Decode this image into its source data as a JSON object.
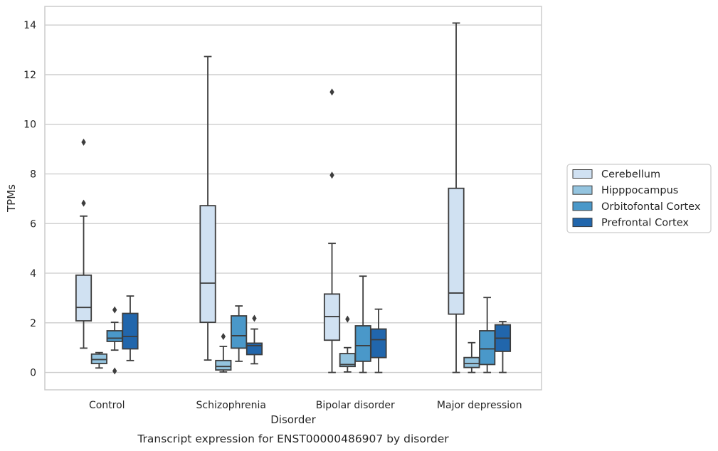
{
  "chart_data": {
    "type": "box",
    "xlabel": "Disorder",
    "ylabel": "TPMs",
    "caption": "Transcript expression for ENST00000486907 by disorder",
    "ylim": [
      -0.7,
      14.75
    ],
    "yticks": [
      0,
      2,
      4,
      6,
      8,
      10,
      12,
      14
    ],
    "grid": true,
    "legend_position": "right",
    "categories": [
      "Control",
      "Schizophrenia",
      "Bipolar disorder",
      "Major depression"
    ],
    "series": [
      {
        "name": "Cerebellum",
        "color": "#d0e1f2",
        "boxes": [
          {
            "whislo": 0.98,
            "q1": 2.08,
            "med": 2.62,
            "q3": 3.92,
            "whishi": 6.3,
            "fliers": [
              6.82,
              9.28
            ]
          },
          {
            "whislo": 0.5,
            "q1": 2.02,
            "med": 3.6,
            "q3": 6.72,
            "whishi": 12.73,
            "fliers": []
          },
          {
            "whislo": 0.0,
            "q1": 1.3,
            "med": 2.25,
            "q3": 3.16,
            "whishi": 5.2,
            "fliers": [
              7.95,
              11.3
            ]
          },
          {
            "whislo": 0.0,
            "q1": 2.35,
            "med": 3.2,
            "q3": 7.42,
            "whishi": 14.08,
            "fliers": []
          }
        ]
      },
      {
        "name": "Hipppocampus",
        "color": "#94c4df",
        "boxes": [
          {
            "whislo": 0.18,
            "q1": 0.36,
            "med": 0.52,
            "q3": 0.74,
            "whishi": 0.8,
            "fliers": []
          },
          {
            "whislo": 0.02,
            "q1": 0.1,
            "med": 0.24,
            "q3": 0.48,
            "whishi": 1.05,
            "fliers": [
              1.45
            ]
          },
          {
            "whislo": 0.02,
            "q1": 0.24,
            "med": 0.32,
            "q3": 0.76,
            "whishi": 1.0,
            "fliers": [
              2.15
            ]
          },
          {
            "whislo": 0.0,
            "q1": 0.2,
            "med": 0.36,
            "q3": 0.6,
            "whishi": 1.2,
            "fliers": []
          }
        ]
      },
      {
        "name": "Orbitofontal Cortex",
        "color": "#4a98c9",
        "boxes": [
          {
            "whislo": 0.9,
            "q1": 1.25,
            "med": 1.38,
            "q3": 1.68,
            "whishi": 2.02,
            "fliers": [
              0.06,
              2.52
            ]
          },
          {
            "whislo": 0.45,
            "q1": 0.98,
            "med": 1.48,
            "q3": 2.28,
            "whishi": 2.68,
            "fliers": []
          },
          {
            "whislo": 0.0,
            "q1": 0.45,
            "med": 1.08,
            "q3": 1.88,
            "whishi": 3.88,
            "fliers": []
          },
          {
            "whislo": 0.0,
            "q1": 0.32,
            "med": 0.95,
            "q3": 1.68,
            "whishi": 3.02,
            "fliers": []
          }
        ]
      },
      {
        "name": "Prefrontal Cortex",
        "color": "#2166ac",
        "boxes": [
          {
            "whislo": 0.48,
            "q1": 0.95,
            "med": 1.45,
            "q3": 2.38,
            "whishi": 3.08,
            "fliers": []
          },
          {
            "whislo": 0.35,
            "q1": 0.72,
            "med": 1.08,
            "q3": 1.18,
            "whishi": 1.75,
            "fliers": [
              2.18
            ]
          },
          {
            "whislo": 0.0,
            "q1": 0.6,
            "med": 1.32,
            "q3": 1.75,
            "whishi": 2.55,
            "fliers": []
          },
          {
            "whislo": 0.0,
            "q1": 0.85,
            "med": 1.38,
            "q3": 1.92,
            "whishi": 2.05,
            "fliers": []
          }
        ]
      }
    ]
  }
}
